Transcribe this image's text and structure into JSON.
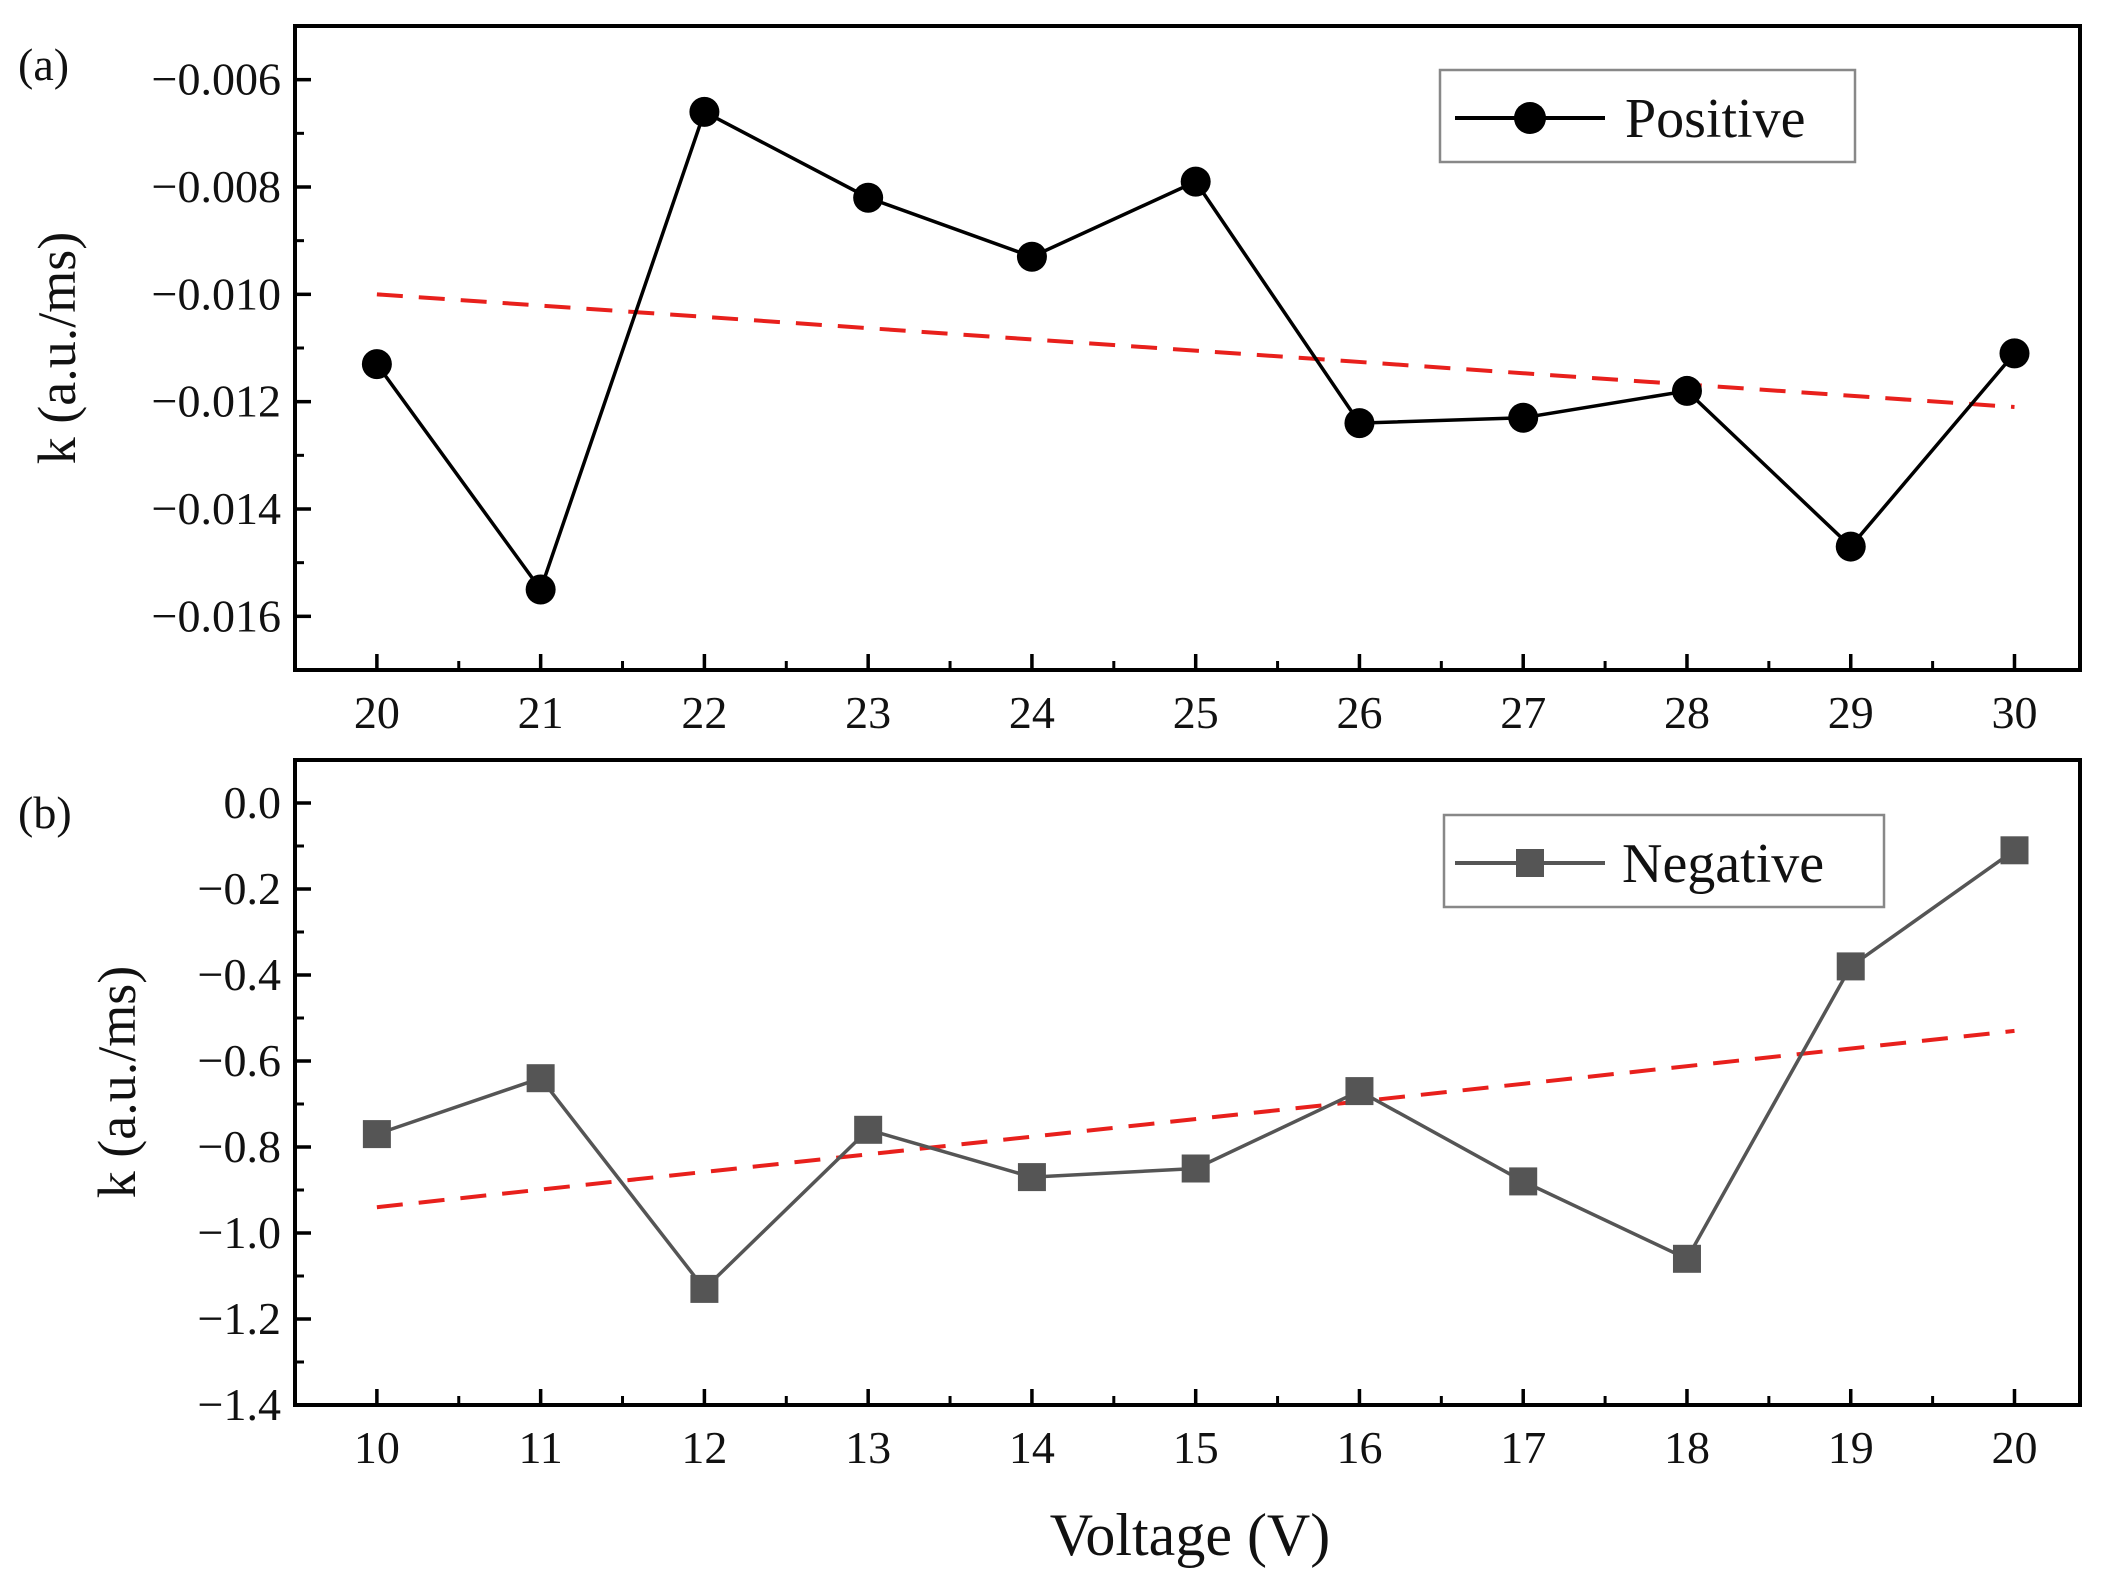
{
  "chart_data": [
    {
      "type": "line",
      "panel_label": "(a)",
      "xlabel": "",
      "ylabel": "k (a.u./ms)",
      "x": [
        20,
        21,
        22,
        23,
        24,
        25,
        26,
        27,
        28,
        29,
        30
      ],
      "x_ticks": [
        "20",
        "21",
        "22",
        "23",
        "24",
        "25",
        "26",
        "27",
        "28",
        "29",
        "30"
      ],
      "xlim": [
        19.5,
        30.4
      ],
      "ylim": [
        -0.017,
        -0.005
      ],
      "y_ticks": [
        -0.006,
        -0.008,
        -0.01,
        -0.012,
        -0.014,
        -0.016
      ],
      "y_tick_labels": [
        "−0.006",
        "−0.008",
        "−0.010",
        "−0.012",
        "−0.014",
        "−0.016"
      ],
      "series": [
        {
          "name": "Positive",
          "marker": "circle",
          "color": "#000000",
          "values": [
            -0.0113,
            -0.0155,
            -0.0066,
            -0.0082,
            -0.0093,
            -0.0079,
            -0.0124,
            -0.0123,
            -0.0118,
            -0.0147,
            -0.0111
          ]
        }
      ],
      "trend": {
        "style": "dashed",
        "color": "#e8201c",
        "from": [
          20,
          -0.01
        ],
        "to": [
          30,
          -0.0121
        ]
      },
      "legend": {
        "placement": "top-right"
      },
      "grid": false
    },
    {
      "type": "line",
      "panel_label": "(b)",
      "xlabel": "Voltage (V)",
      "ylabel": "k (a.u./ms)",
      "x": [
        10,
        11,
        12,
        13,
        14,
        15,
        16,
        17,
        18,
        19,
        20
      ],
      "x_ticks": [
        "10",
        "11",
        "12",
        "13",
        "14",
        "15",
        "16",
        "17",
        "18",
        "19",
        "20"
      ],
      "xlim": [
        9.5,
        20.4
      ],
      "ylim": [
        -1.4,
        0.1
      ],
      "y_ticks": [
        0.0,
        -0.2,
        -0.4,
        -0.6,
        -0.8,
        -1.0,
        -1.2,
        -1.4
      ],
      "y_tick_labels": [
        "0.0",
        "−0.2",
        "−0.4",
        "−0.6",
        "−0.8",
        "−1.0",
        "−1.2",
        "−1.4"
      ],
      "series": [
        {
          "name": "Negative",
          "marker": "square",
          "color": "#555555",
          "values": [
            -0.77,
            -0.64,
            -1.13,
            -0.76,
            -0.87,
            -0.85,
            -0.67,
            -0.88,
            -1.06,
            -0.38,
            -0.11
          ]
        }
      ],
      "trend": {
        "style": "dashed",
        "color": "#e8201c",
        "from": [
          10,
          -0.94
        ],
        "to": [
          20,
          -0.53
        ]
      },
      "legend": {
        "placement": "top-right"
      },
      "grid": false
    }
  ]
}
